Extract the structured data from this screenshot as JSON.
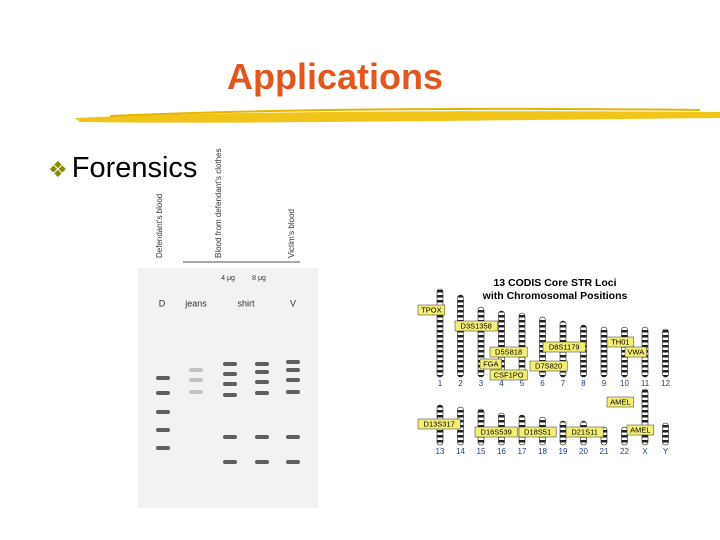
{
  "header": {
    "title": "Applications"
  },
  "bullets": [
    "Forensics"
  ],
  "gel_figure": {
    "lane_headers": [
      "Defendant's blood",
      "Blood from defendant's clothes",
      "Victim's blood"
    ],
    "amounts": [
      "4 μg",
      "8 μg"
    ],
    "lanes": [
      "D",
      "jeans",
      "shirt",
      "V"
    ]
  },
  "codis_figure": {
    "title": [
      "13 CODIS Core STR Loci",
      "with Chromosomal Positions"
    ],
    "row1_chromosomes": [
      "1",
      "2",
      "3",
      "4",
      "5",
      "6",
      "7",
      "8",
      "9",
      "10",
      "11",
      "12"
    ],
    "row2_chromosomes": [
      "13",
      "14",
      "15",
      "16",
      "17",
      "18",
      "19",
      "20",
      "21",
      "22",
      "X",
      "Y"
    ],
    "loci": [
      "TPOX",
      "D3S1358",
      "D5S818",
      "FGA",
      "CSF1PO",
      "D8S1179",
      "D7S820",
      "TH01",
      "VWA",
      "AMEL",
      "D13S317",
      "D16S539",
      "D18S51",
      "D21S11",
      "AMEL"
    ]
  }
}
